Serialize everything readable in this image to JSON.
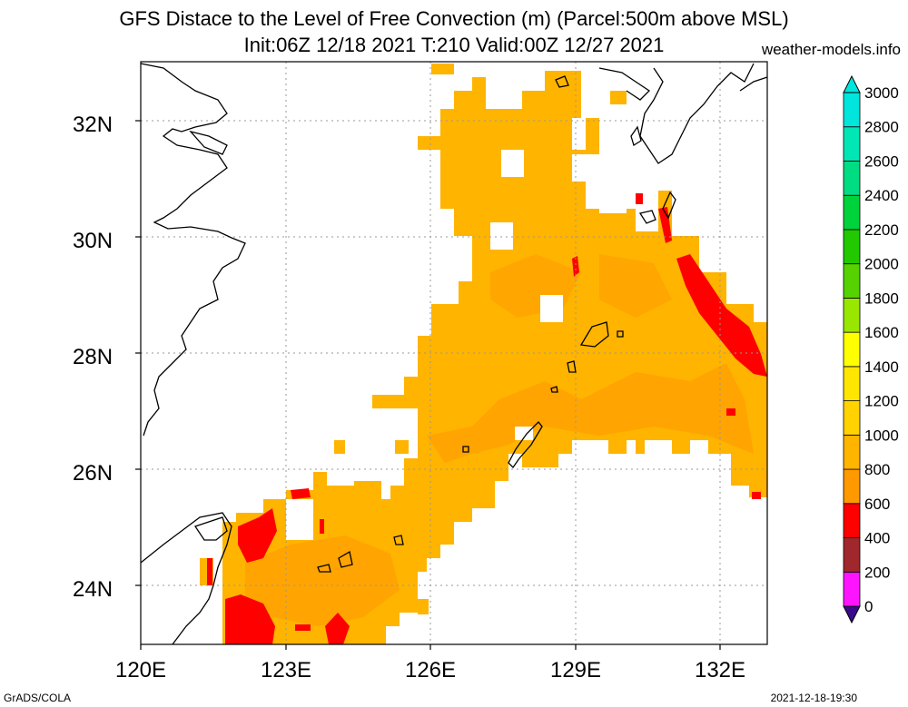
{
  "title_line1": "GFS Distace to the Level of Free Convection (m) (Parcel:500m above MSL)",
  "title_line2": "Init:06Z 12/18 2021 T:210 Valid:00Z 12/27 2021",
  "credit": "weather-models.info",
  "footer_left": "GrADS/COLA",
  "footer_right": "2021-12-18-19:30",
  "lat_labels": [
    "24N",
    "26N",
    "28N",
    "30N",
    "32N"
  ],
  "lon_labels": [
    "120E",
    "123E",
    "126E",
    "129E",
    "132E"
  ],
  "colorbar": {
    "labels": [
      "0",
      "200",
      "400",
      "600",
      "800",
      "1000",
      "1200",
      "1400",
      "1600",
      "1800",
      "2000",
      "2200",
      "2400",
      "2600",
      "2800",
      "3000"
    ],
    "colors": [
      "#3a0a8c",
      "#ff14ff",
      "#a0282d",
      "#ff0000",
      "#ff9900",
      "#ffb400",
      "#ffd200",
      "#ffe600",
      "#ffff00",
      "#99e600",
      "#55d200",
      "#22c800",
      "#00d23c",
      "#00dc82",
      "#00e6b4",
      "#00e6dc"
    ]
  }
}
